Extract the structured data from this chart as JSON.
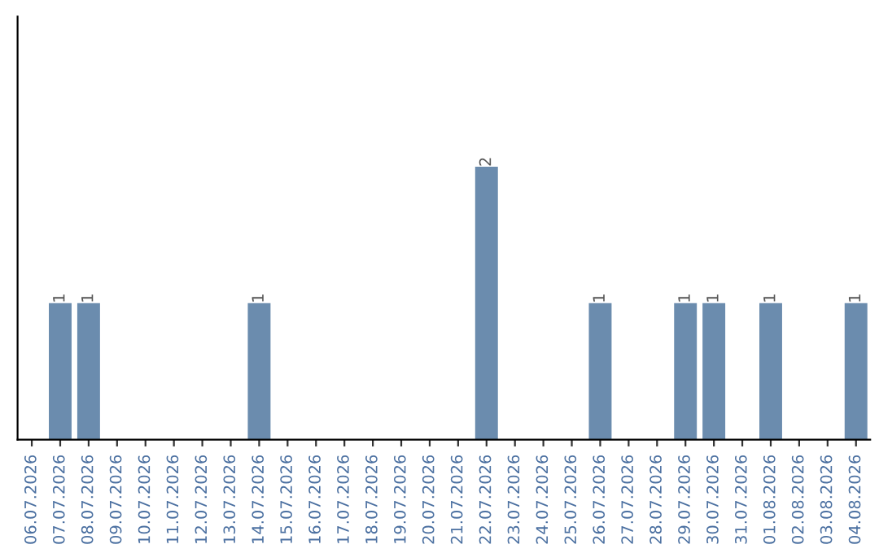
{
  "chart_data": {
    "type": "bar",
    "categories": [
      "06.07.2026",
      "07.07.2026",
      "08.07.2026",
      "09.07.2026",
      "10.07.2026",
      "11.07.2026",
      "12.07.2026",
      "13.07.2026",
      "14.07.2026",
      "15.07.2026",
      "16.07.2026",
      "17.07.2026",
      "18.07.2026",
      "19.07.2026",
      "20.07.2026",
      "21.07.2026",
      "22.07.2026",
      "23.07.2026",
      "24.07.2026",
      "25.07.2026",
      "26.07.2026",
      "27.07.2026",
      "28.07.2026",
      "29.07.2026",
      "30.07.2026",
      "31.07.2026",
      "01.08.2026",
      "02.08.2026",
      "03.08.2026",
      "04.08.2026"
    ],
    "values": [
      0,
      1,
      1,
      0,
      0,
      0,
      0,
      0,
      1,
      0,
      0,
      0,
      0,
      0,
      0,
      0,
      2,
      0,
      0,
      0,
      1,
      0,
      0,
      1,
      1,
      0,
      1,
      0,
      0,
      1
    ],
    "value_labels": [
      null,
      "1",
      "1",
      null,
      null,
      null,
      null,
      null,
      "1",
      null,
      null,
      null,
      null,
      null,
      null,
      null,
      "2",
      null,
      null,
      null,
      "1",
      null,
      null,
      "1",
      "1",
      null,
      "1",
      null,
      null,
      "1"
    ],
    "color": "#6b8cae",
    "tick_labels": "x",
    "grid": false
  }
}
